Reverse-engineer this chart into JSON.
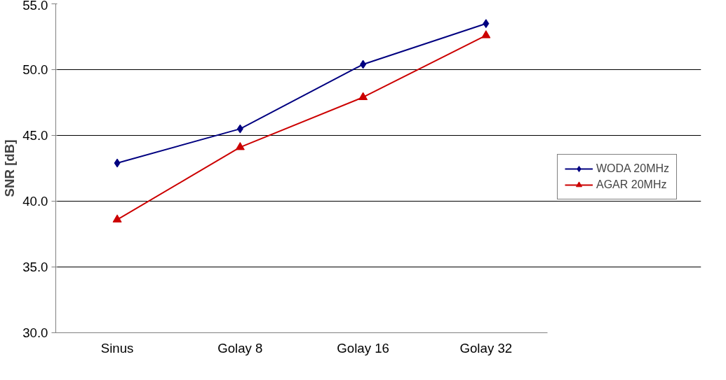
{
  "chart_data": {
    "type": "line",
    "ylabel": "SNR [dB]",
    "categories": [
      "Sinus",
      "Golay 8",
      "Golay 16",
      "Golay 32"
    ],
    "series": [
      {
        "name": "WODA 20MHz",
        "color": "#000080",
        "marker": "diamond",
        "values": [
          42.9,
          45.5,
          50.4,
          53.5
        ]
      },
      {
        "name": "AGAR 20MHz",
        "color": "#cc0000",
        "marker": "triangle",
        "values": [
          38.6,
          44.1,
          47.9,
          52.6
        ]
      }
    ],
    "ylim": [
      30,
      55
    ],
    "yticks": [
      {
        "value": 30,
        "label": "30.0"
      },
      {
        "value": 35,
        "label": "35.0"
      },
      {
        "value": 40,
        "label": "40.0"
      },
      {
        "value": 45,
        "label": "45.0"
      },
      {
        "value": 50,
        "label": "50.0"
      },
      {
        "value": 55,
        "label": "55.0"
      }
    ],
    "grid": "y",
    "legend": "right"
  }
}
